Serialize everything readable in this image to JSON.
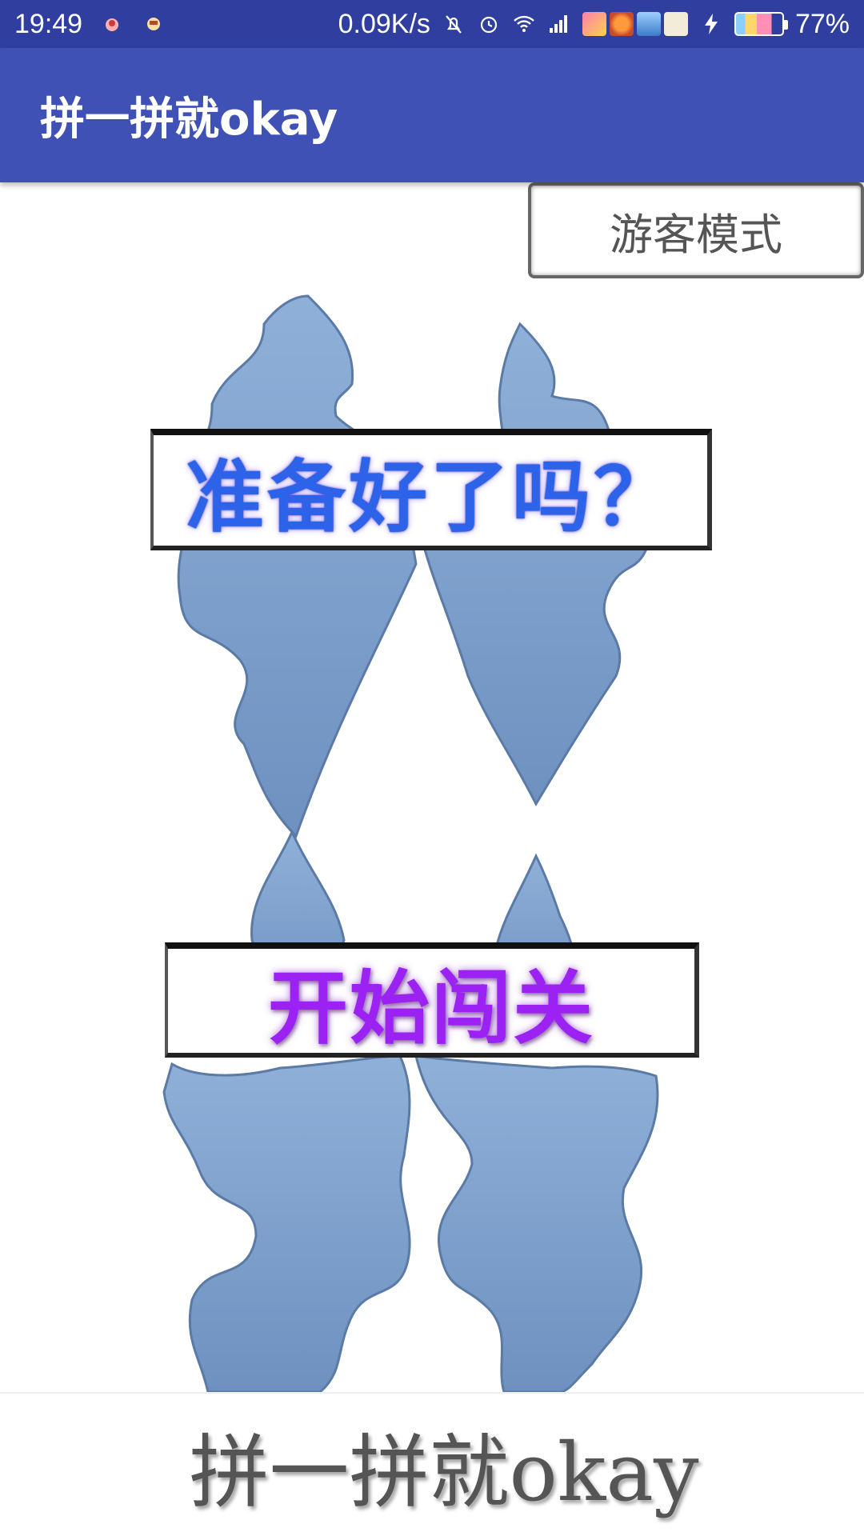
{
  "status_bar": {
    "time": "19:49",
    "net_speed": "0.09K/s",
    "battery_percent": "77%",
    "icons": [
      "notification-app-icon",
      "notification-app-icon-2",
      "mute-icon",
      "alarm-icon",
      "wifi-icon",
      "signal-icon",
      "charging-icon"
    ]
  },
  "app_bar": {
    "title": "拼一拼就okay"
  },
  "guest_button": {
    "label": "游客模式"
  },
  "ready_banner": {
    "text": "准备好了吗？"
  },
  "start_banner": {
    "text": "开始闯关"
  },
  "footer": {
    "text": "拼一拼就okay"
  },
  "colors": {
    "status_bar": "#303f9f",
    "app_bar": "#3f51b5",
    "puzzle": "#7ea0cc",
    "ready_text": "#2c63e8",
    "start_text": "#9b22f2"
  }
}
